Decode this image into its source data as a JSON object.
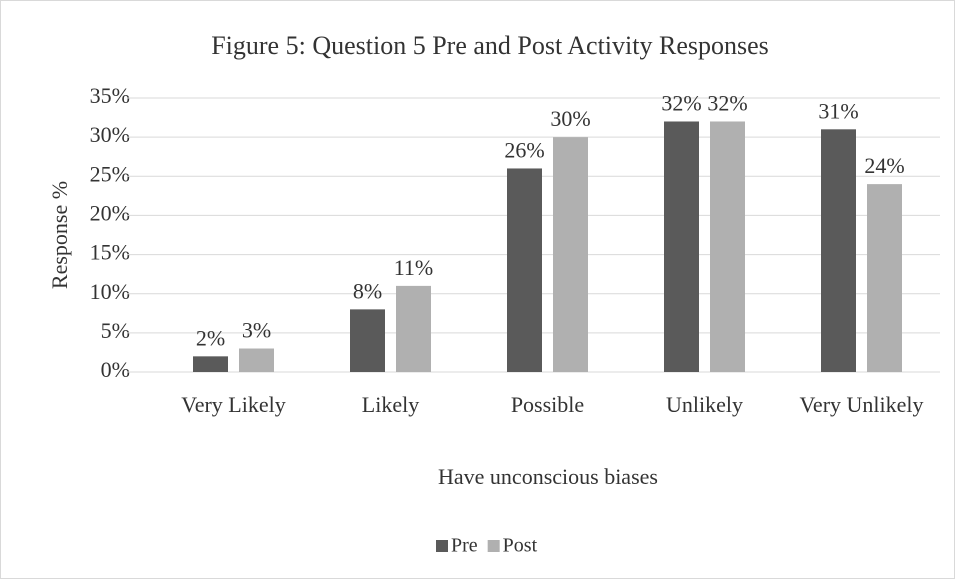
{
  "chart_data": {
    "type": "bar",
    "title": "Figure 5: Question 5 Pre and Post Activity Responses",
    "x_label": "Have unconscious biases",
    "y_label": "Response %",
    "categories": [
      "Very Likely",
      "Likely",
      "Possible",
      "Unlikely",
      "Very Unlikely"
    ],
    "series": [
      {
        "name": "Pre",
        "color": "#5a5a5a",
        "values": [
          2,
          8,
          26,
          32,
          31
        ],
        "value_labels": [
          "2%",
          "8%",
          "26%",
          "32%",
          "31%"
        ]
      },
      {
        "name": "Post",
        "color": "#b0b0b0",
        "values": [
          3,
          11,
          30,
          32,
          24
        ],
        "value_labels": [
          "3%",
          "11%",
          "30%",
          "32%",
          "24%"
        ]
      }
    ],
    "ylim": [
      0,
      35
    ],
    "yticks": [
      {
        "value": 0,
        "label": "0%"
      },
      {
        "value": 5,
        "label": "5%"
      },
      {
        "value": 10,
        "label": "10%"
      },
      {
        "value": 15,
        "label": "15%"
      },
      {
        "value": 20,
        "label": "20%"
      },
      {
        "value": 25,
        "label": "25%"
      },
      {
        "value": 30,
        "label": "30%"
      },
      {
        "value": 35,
        "label": "35%"
      }
    ],
    "grid": true,
    "legend": "bottom"
  }
}
